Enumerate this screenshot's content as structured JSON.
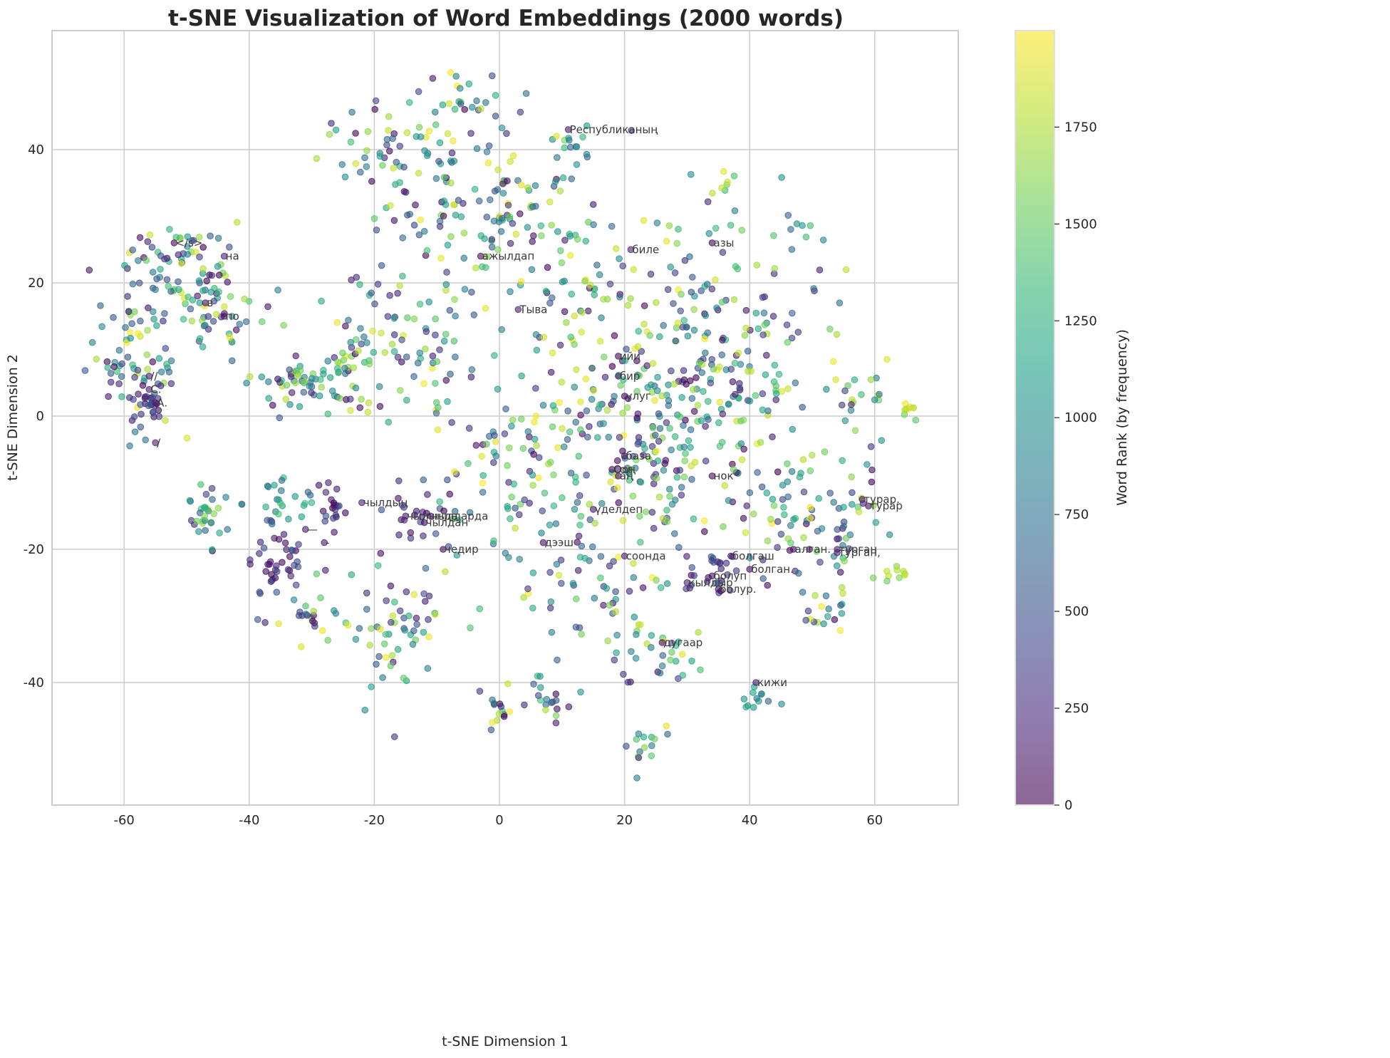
{
  "title": "t-SNE Visualization of Word Embeddings (2000 words)",
  "chart_data": {
    "type": "scatter",
    "title": "t-SNE Visualization of Word Embeddings (2000 words)",
    "xlabel": "t-SNE Dimension 1",
    "ylabel": "t-SNE Dimension 2",
    "xlim": [
      -72,
      73
    ],
    "ylim": [
      -58,
      58
    ],
    "xticks": [
      -60,
      -40,
      -20,
      0,
      20,
      40,
      60
    ],
    "yticks": [
      -40,
      -20,
      0,
      20,
      40
    ],
    "grid": true,
    "n_points": 2000,
    "marker_alpha": 0.6,
    "colormap": "viridis",
    "colorbar": {
      "label": "Word Rank (by frequency)",
      "min": 0,
      "max": 1999,
      "ticks": [
        0,
        250,
        500,
        750,
        1000,
        1250,
        1500,
        1750
      ],
      "position": "right"
    },
    "annotations": [
      {
        "text": "Республиканың",
        "x": 11,
        "y": 43
      },
      {
        "text": "</s>",
        "x": -52,
        "y": 26
      },
      {
        "text": "на",
        "x": -44,
        "y": 24
      },
      {
        "text": "в",
        "x": -47,
        "y": 17
      },
      {
        "text": "по",
        "x": -44,
        "y": 15
      },
      {
        "text": "//",
        "x": -56,
        "y": 6
      },
      {
        "text": "С.",
        "x": -56,
        "y": 4
      },
      {
        "text": "А.",
        "x": -55,
        "y": 2
      },
      {
        "text": "/",
        "x": -55,
        "y": -4
      },
      {
        "text": "ажылдап",
        "x": -3,
        "y": 24
      },
      {
        "text": "биле",
        "x": 21,
        "y": 25
      },
      {
        "text": "азы",
        "x": 34,
        "y": 26
      },
      {
        "text": "Тыва",
        "x": 3,
        "y": 16
      },
      {
        "text": "ийи",
        "x": 19,
        "y": 9
      },
      {
        "text": "бир",
        "x": 19,
        "y": 6
      },
      {
        "text": "улуг",
        "x": 20,
        "y": 3
      },
      {
        "text": "база",
        "x": 20,
        "y": -6
      },
      {
        "text": "Ооң",
        "x": 18,
        "y": -8
      },
      {
        "text": "ол",
        "x": 19,
        "y": -8
      },
      {
        "text": "аң",
        "x": 19,
        "y": -9
      },
      {
        "text": "нок",
        "x": 34,
        "y": -9
      },
      {
        "text": "чылдың",
        "x": -22,
        "y": -13
      },
      {
        "text": "чылында",
        "x": -15,
        "y": -15
      },
      {
        "text": "чылдарда",
        "x": -11,
        "y": -15
      },
      {
        "text": "чылдан",
        "x": -12,
        "y": -16
      },
      {
        "text": "чедир",
        "x": -9,
        "y": -20
      },
      {
        "text": "дээш",
        "x": 7,
        "y": -19
      },
      {
        "text": "үделдеп",
        "x": 15,
        "y": -14
      },
      {
        "text": "соонда",
        "x": 20,
        "y": -21
      },
      {
        "text": "болгаш",
        "x": 37,
        "y": -21
      },
      {
        "text": "болган.",
        "x": 40,
        "y": -23
      },
      {
        "text": "болуп",
        "x": 34,
        "y": -24
      },
      {
        "text": "кылдыр",
        "x": 30,
        "y": -25
      },
      {
        "text": "болур.",
        "x": 35,
        "y": -26
      },
      {
        "text": "алган.",
        "x": 47,
        "y": -20
      },
      {
        "text": "турган",
        "x": 54,
        "y": -20
      },
      {
        "text": "турган,",
        "x": 54,
        "y": -20.5
      },
      {
        "text": "турар.",
        "x": 58,
        "y": -12.5
      },
      {
        "text": "турар",
        "x": 59,
        "y": -13.5
      },
      {
        "text": "дугаар",
        "x": 26,
        "y": -34
      },
      {
        "text": "кижи",
        "x": 41,
        "y": -40
      },
      {
        "text": "—",
        "x": -31,
        "y": -17
      },
      {
        "text": "-",
        "x": -28,
        "y": -19
      }
    ],
    "clusters": [
      {
        "x": -58,
        "y": 10,
        "sx": 4,
        "sy": 6,
        "n": 80,
        "rank": "mixed"
      },
      {
        "x": -56,
        "y": 2,
        "sx": 1.5,
        "sy": 1.5,
        "n": 30,
        "rank": "low"
      },
      {
        "x": -46,
        "y": 18,
        "sx": 4,
        "sy": 4,
        "n": 70,
        "rank": "mixed"
      },
      {
        "x": -52,
        "y": 25,
        "sx": 4,
        "sy": 2,
        "n": 35,
        "rank": "mixed"
      },
      {
        "x": -34,
        "y": 5,
        "sx": 3,
        "sy": 2,
        "n": 45,
        "rank": "mixed"
      },
      {
        "x": -47,
        "y": -16,
        "sx": 2,
        "sy": 3,
        "n": 30,
        "rank": "mixed"
      },
      {
        "x": -36,
        "y": -22,
        "sx": 2.5,
        "sy": 3,
        "n": 45,
        "rank": "low"
      },
      {
        "x": -27,
        "y": -13,
        "sx": 1,
        "sy": 2,
        "n": 20,
        "rank": "low"
      },
      {
        "x": -24,
        "y": 6,
        "sx": 3,
        "sy": 3,
        "n": 40,
        "rank": "mixed"
      },
      {
        "x": -35,
        "y": -12,
        "sx": 3,
        "sy": 2,
        "n": 25,
        "rank": "mid"
      },
      {
        "x": -30,
        "y": -30,
        "sx": 3,
        "sy": 2,
        "n": 20,
        "rank": "mixed"
      },
      {
        "x": -10,
        "y": 30,
        "sx": 8,
        "sy": 10,
        "n": 110,
        "rank": "mixed"
      },
      {
        "x": -6,
        "y": 48,
        "sx": 3,
        "sy": 3,
        "n": 25,
        "rank": "mixed"
      },
      {
        "x": 3,
        "y": 30,
        "sx": 4,
        "sy": 4,
        "n": 40,
        "rank": "mixed"
      },
      {
        "x": -15,
        "y": 10,
        "sx": 6,
        "sy": 6,
        "n": 60,
        "rank": "mixed"
      },
      {
        "x": -16,
        "y": -32,
        "sx": 5,
        "sy": 5,
        "n": 60,
        "rank": "mixed"
      },
      {
        "x": -13,
        "y": -15,
        "sx": 2,
        "sy": 1.5,
        "n": 20,
        "rank": "low"
      },
      {
        "x": 0,
        "y": -8,
        "sx": 6,
        "sy": 8,
        "n": 80,
        "rank": "mixed"
      },
      {
        "x": 0,
        "y": -45,
        "sx": 1.5,
        "sy": 1.5,
        "n": 15,
        "rank": "mixed"
      },
      {
        "x": 8,
        "y": -42,
        "sx": 2,
        "sy": 2,
        "n": 20,
        "rank": "mixed"
      },
      {
        "x": 12,
        "y": 40,
        "sx": 2,
        "sy": 2,
        "n": 15,
        "rank": "mid"
      },
      {
        "x": 12,
        "y": 20,
        "sx": 5,
        "sy": 8,
        "n": 50,
        "rank": "mixed"
      },
      {
        "x": 25,
        "y": -2,
        "sx": 9,
        "sy": 9,
        "n": 260,
        "rank": "mixed"
      },
      {
        "x": 30,
        "y": 20,
        "sx": 6,
        "sy": 8,
        "n": 60,
        "rank": "mixed"
      },
      {
        "x": 40,
        "y": 8,
        "sx": 7,
        "sy": 8,
        "n": 90,
        "rank": "mixed"
      },
      {
        "x": 15,
        "y": -25,
        "sx": 6,
        "sy": 6,
        "n": 60,
        "rank": "mixed"
      },
      {
        "x": 35,
        "y": -24,
        "sx": 3,
        "sy": 2,
        "n": 30,
        "rank": "low"
      },
      {
        "x": 25,
        "y": -36,
        "sx": 4,
        "sy": 3,
        "n": 30,
        "rank": "mixed"
      },
      {
        "x": 24,
        "y": -50,
        "sx": 2,
        "sy": 2,
        "n": 15,
        "rank": "mixed"
      },
      {
        "x": 41,
        "y": -42,
        "sx": 1.5,
        "sy": 1.5,
        "n": 12,
        "rank": "mid"
      },
      {
        "x": 47,
        "y": -15,
        "sx": 5,
        "sy": 6,
        "n": 55,
        "rank": "mixed"
      },
      {
        "x": 55,
        "y": -15,
        "sx": 3,
        "sy": 5,
        "n": 35,
        "rank": "mixed"
      },
      {
        "x": 58,
        "y": 3,
        "sx": 3,
        "sy": 3,
        "n": 20,
        "rank": "mixed"
      },
      {
        "x": 52,
        "y": -29,
        "sx": 2,
        "sy": 2,
        "n": 15,
        "rank": "mixed"
      },
      {
        "x": 62,
        "y": -24,
        "sx": 1.5,
        "sy": 1,
        "n": 10,
        "rank": "high"
      },
      {
        "x": 66,
        "y": 1,
        "sx": 0.6,
        "sy": 0.8,
        "n": 8,
        "rank": "high"
      },
      {
        "x": 35,
        "y": 35,
        "sx": 2,
        "sy": 1,
        "n": 6,
        "rank": "high"
      },
      {
        "x": 48,
        "y": 27,
        "sx": 2,
        "sy": 2,
        "n": 8,
        "rank": "mid"
      },
      {
        "x": -18,
        "y": 40,
        "sx": 5,
        "sy": 3,
        "n": 40,
        "rank": "mixed"
      }
    ]
  },
  "colorbar_colors": [
    "#440154",
    "#482878",
    "#3e4989",
    "#31688e",
    "#26828e",
    "#1f9e89",
    "#35b779",
    "#6ece58",
    "#b5de2b",
    "#fde725"
  ],
  "grid_color": "#cccccc",
  "background": "#ffffff"
}
